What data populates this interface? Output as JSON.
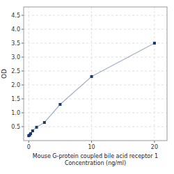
{
  "chart_data": {
    "type": "line",
    "xlabel": "Mouse G-protein coupled bile acid receptor 1\nConcentration (ng/ml)",
    "ylabel": "OD",
    "x": [
      0.0,
      0.156,
      0.313,
      0.625,
      1.25,
      2.5,
      5.0,
      10.0,
      20.0
    ],
    "values": [
      0.175,
      0.2,
      0.25,
      0.35,
      0.48,
      0.65,
      1.3,
      2.3,
      3.5
    ],
    "color": "#1a3a6b",
    "marker": "square",
    "xlim": [
      -0.8,
      22
    ],
    "ylim": [
      0,
      4.8
    ],
    "xticks": [
      0,
      10,
      20
    ],
    "yticks": [
      0.5,
      {
        "value": 1.0,
        "label": "1.0"
      },
      1.5,
      {
        "value": 2.0,
        "label": "2.0"
      },
      2.5,
      {
        "value": 3.0,
        "label": "3.0"
      },
      3.5,
      {
        "value": 4.0,
        "label": "4.0"
      },
      4.5
    ],
    "grid": true
  }
}
